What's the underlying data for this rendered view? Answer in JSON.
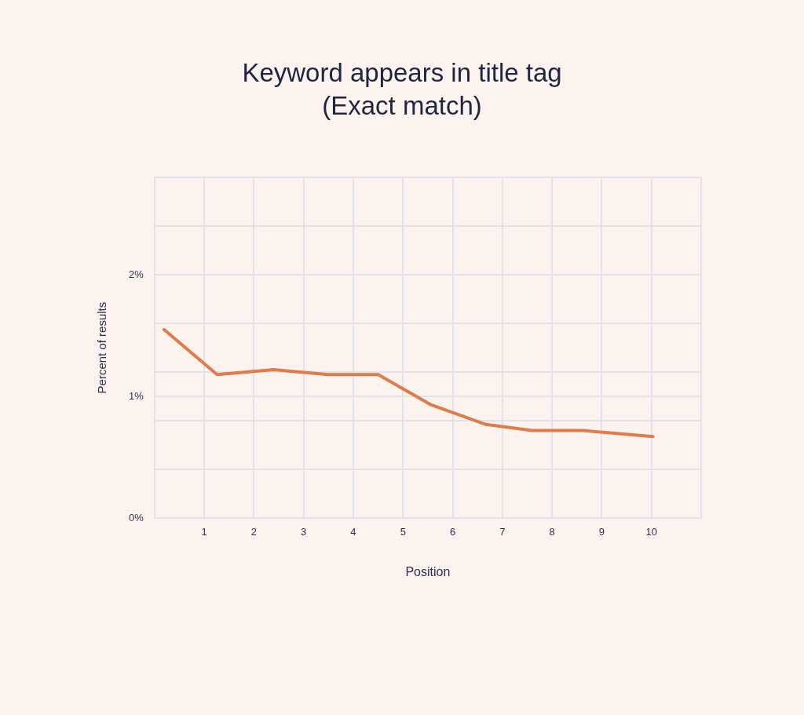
{
  "chart_data": {
    "type": "line",
    "title": "Keyword appears in title tag (Exact match)",
    "xlabel": "Position",
    "ylabel": "Percent of results",
    "x": [
      0.19,
      1.26,
      2.4,
      3.49,
      4.5,
      5.57,
      6.67,
      7.6,
      8.62,
      10.03
    ],
    "series": [
      {
        "color": "#e07b4a",
        "values": [
          1.55,
          1.18,
          1.22,
          1.18,
          1.18,
          0.93,
          0.77,
          0.72,
          0.72,
          0.67
        ]
      }
    ],
    "xlim": [
      0,
      11
    ],
    "xticks": [
      {
        "value": 0,
        "label": null
      },
      1,
      2,
      3,
      4,
      5,
      6,
      7,
      8,
      9,
      10,
      {
        "value": 11,
        "label": null
      }
    ],
    "ylim": [
      0,
      2.8
    ],
    "yticks": [
      {
        "value": 0,
        "label": "0%"
      },
      {
        "value": 0.4,
        "label": null
      },
      {
        "value": 0.8,
        "label": null
      },
      {
        "value": 1,
        "label": "1%"
      },
      {
        "value": 1.2,
        "label": null
      },
      {
        "value": 1.6,
        "label": null
      },
      {
        "value": 2,
        "label": "2%"
      },
      {
        "value": 2.4,
        "label": null
      },
      {
        "value": 2.8,
        "label": null
      }
    ],
    "grid": true,
    "legend": false,
    "marker": "none",
    "line_style": "solid"
  }
}
